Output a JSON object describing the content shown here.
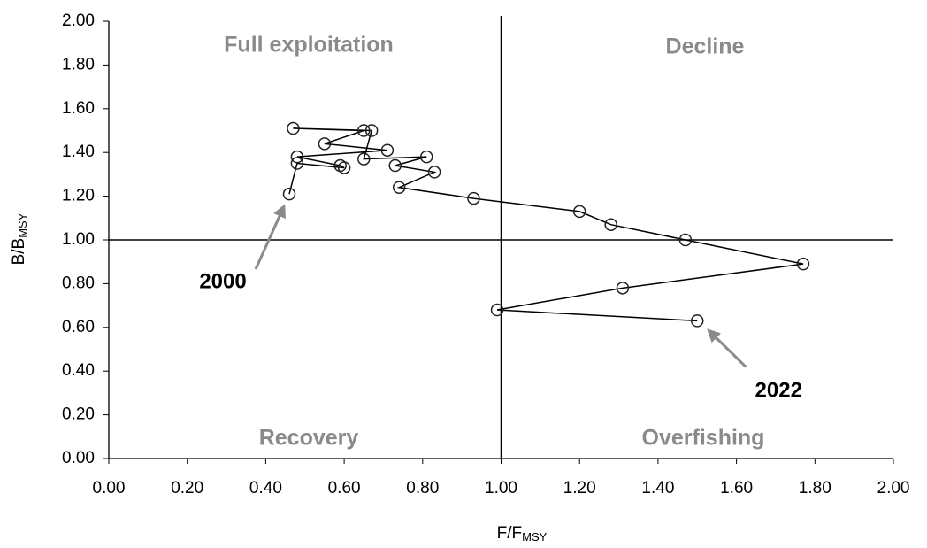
{
  "chart_data": {
    "type": "line",
    "xlabel": "F/F",
    "xlabel_sub": "MSY",
    "ylabel": "B/B",
    "ylabel_sub": "MSY",
    "x": [
      0.46,
      0.48,
      0.6,
      0.59,
      0.48,
      0.71,
      0.55,
      0.65,
      0.47,
      0.67,
      0.65,
      0.81,
      0.73,
      0.83,
      0.74,
      0.93,
      1.2,
      1.28,
      1.47,
      1.77,
      1.31,
      0.99,
      1.5
    ],
    "series": [
      {
        "color": "#000000",
        "values": [
          1.21,
          1.35,
          1.33,
          1.34,
          1.38,
          1.41,
          1.44,
          1.5,
          1.51,
          1.5,
          1.37,
          1.38,
          1.34,
          1.31,
          1.24,
          1.19,
          1.13,
          1.07,
          1.0,
          0.89,
          0.78,
          0.68,
          0.63
        ]
      }
    ],
    "xlim": [
      0,
      2
    ],
    "ylim": [
      0,
      2
    ],
    "xticks": [
      {
        "value": 0,
        "label": "0.00"
      },
      {
        "value": 0.2,
        "label": "0.20"
      },
      {
        "value": 0.4,
        "label": "0.40"
      },
      {
        "value": 0.6,
        "label": "0.60"
      },
      {
        "value": 0.8,
        "label": "0.80"
      },
      {
        "value": 1,
        "label": "1.00"
      },
      {
        "value": 1.2,
        "label": "1.20"
      },
      {
        "value": 1.4,
        "label": "1.40"
      },
      {
        "value": 1.6,
        "label": "1.60"
      },
      {
        "value": 1.8,
        "label": "1.80"
      },
      {
        "value": 2,
        "label": "2.00"
      }
    ],
    "yticks": [
      {
        "value": 0,
        "label": "0.00"
      },
      {
        "value": 0.2,
        "label": "0.20"
      },
      {
        "value": 0.4,
        "label": "0.40"
      },
      {
        "value": 0.6,
        "label": "0.60"
      },
      {
        "value": 0.8,
        "label": "0.80"
      },
      {
        "value": 1,
        "label": "1.00"
      },
      {
        "value": 1.2,
        "label": "1.20"
      },
      {
        "value": 1.4,
        "label": "1.40"
      },
      {
        "value": 1.6,
        "label": "1.60"
      },
      {
        "value": 1.8,
        "label": "1.80"
      },
      {
        "value": 2,
        "label": "2.00"
      }
    ],
    "reference_lines": {
      "x": 1,
      "y": 1
    },
    "quadrant_labels": {
      "top_left": "Full exploitation",
      "top_right": "Decline",
      "bottom_left": "Recovery",
      "bottom_right": "Overfishing"
    },
    "annotations": [
      {
        "text": "2000"
      },
      {
        "text": "2022"
      }
    ]
  }
}
